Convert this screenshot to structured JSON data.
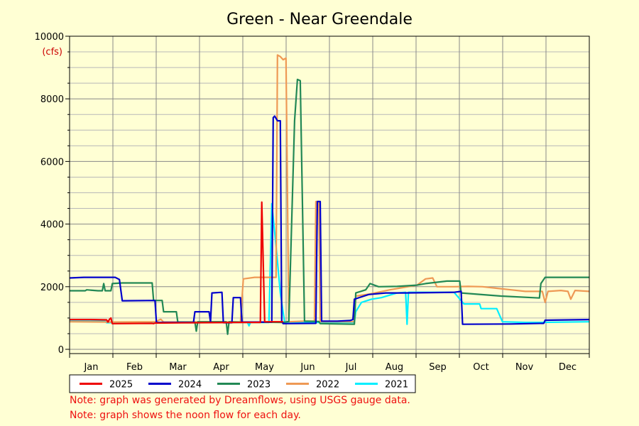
{
  "chart_data": {
    "type": "line",
    "title": "Green - Near Greendale",
    "unit_label": "(cfs)",
    "xlabel": "",
    "ylabel": "",
    "ylim": [
      0,
      10000
    ],
    "y_ticks": [
      0,
      2000,
      4000,
      6000,
      8000,
      10000
    ],
    "x_domain_days": [
      0,
      365
    ],
    "months": [
      "Jan",
      "Feb",
      "Mar",
      "Apr",
      "May",
      "Jun",
      "Jul",
      "Aug",
      "Sep",
      "Oct",
      "Nov",
      "Dec"
    ],
    "grid": true,
    "legend_position": "bottom",
    "series": [
      {
        "name": "2025",
        "color": "#ee0000",
        "points": [
          [
            0,
            950
          ],
          [
            14,
            950
          ],
          [
            26,
            940
          ],
          [
            27,
            870
          ],
          [
            28,
            960
          ],
          [
            29,
            1000
          ],
          [
            30,
            820
          ],
          [
            58,
            830
          ],
          [
            59,
            820
          ],
          [
            60,
            840
          ],
          [
            90,
            850
          ],
          [
            120,
            860
          ],
          [
            134,
            860
          ],
          [
            135,
            4700
          ],
          [
            136,
            2800
          ],
          [
            137,
            880
          ],
          [
            150,
            880
          ]
        ]
      },
      {
        "name": "2024",
        "color": "#0000cc",
        "points": [
          [
            0,
            2280
          ],
          [
            10,
            2300
          ],
          [
            32,
            2300
          ],
          [
            35,
            2230
          ],
          [
            37,
            1550
          ],
          [
            60,
            1560
          ],
          [
            61,
            860
          ],
          [
            87,
            860
          ],
          [
            88,
            1200
          ],
          [
            98,
            1200
          ],
          [
            99,
            870
          ],
          [
            100,
            1800
          ],
          [
            107,
            1820
          ],
          [
            108,
            850
          ],
          [
            114,
            850
          ],
          [
            115,
            1650
          ],
          [
            120,
            1650
          ],
          [
            121,
            870
          ],
          [
            142,
            870
          ],
          [
            143,
            7400
          ],
          [
            144,
            7450
          ],
          [
            146,
            7300
          ],
          [
            148,
            7300
          ],
          [
            149,
            900
          ],
          [
            150,
            820
          ],
          [
            173,
            830
          ],
          [
            174,
            4720
          ],
          [
            176,
            4720
          ],
          [
            177,
            900
          ],
          [
            188,
            900
          ],
          [
            197,
            920
          ],
          [
            199,
            950
          ],
          [
            200,
            1600
          ],
          [
            210,
            1750
          ],
          [
            222,
            1800
          ],
          [
            234,
            1800
          ],
          [
            270,
            1820
          ],
          [
            275,
            1850
          ],
          [
            276,
            800
          ],
          [
            310,
            810
          ],
          [
            333,
            830
          ],
          [
            334,
            930
          ],
          [
            365,
            950
          ]
        ]
      },
      {
        "name": "2023",
        "color": "#228855",
        "points": [
          [
            0,
            1870
          ],
          [
            11,
            1870
          ],
          [
            12,
            1900
          ],
          [
            20,
            1870
          ],
          [
            23,
            1870
          ],
          [
            24,
            2100
          ],
          [
            25,
            1870
          ],
          [
            29,
            1870
          ],
          [
            30,
            2100
          ],
          [
            37,
            2120
          ],
          [
            58,
            2120
          ],
          [
            59,
            1560
          ],
          [
            65,
            1560
          ],
          [
            66,
            1200
          ],
          [
            75,
            1200
          ],
          [
            76,
            870
          ],
          [
            88,
            870
          ],
          [
            89,
            580
          ],
          [
            90,
            880
          ],
          [
            110,
            880
          ],
          [
            111,
            480
          ],
          [
            112,
            880
          ],
          [
            120,
            870
          ],
          [
            150,
            860
          ],
          [
            154,
            890
          ],
          [
            158,
            7300
          ],
          [
            160,
            8620
          ],
          [
            162,
            8580
          ],
          [
            165,
            900
          ],
          [
            175,
            890
          ],
          [
            176,
            820
          ],
          [
            200,
            800
          ],
          [
            201,
            1800
          ],
          [
            208,
            1900
          ],
          [
            211,
            2100
          ],
          [
            217,
            2000
          ],
          [
            230,
            2010
          ],
          [
            244,
            2050
          ],
          [
            250,
            2100
          ],
          [
            265,
            2180
          ],
          [
            274,
            2180
          ],
          [
            275,
            1800
          ],
          [
            303,
            1700
          ],
          [
            330,
            1640
          ],
          [
            331,
            2100
          ],
          [
            334,
            2300
          ],
          [
            365,
            2300
          ]
        ]
      },
      {
        "name": "2022",
        "color": "#ee9955",
        "points": [
          [
            0,
            880
          ],
          [
            30,
            870
          ],
          [
            60,
            880
          ],
          [
            64,
            960
          ],
          [
            66,
            870
          ],
          [
            100,
            870
          ],
          [
            120,
            870
          ],
          [
            122,
            2250
          ],
          [
            130,
            2300
          ],
          [
            145,
            2300
          ],
          [
            146,
            9400
          ],
          [
            148,
            9350
          ],
          [
            150,
            9250
          ],
          [
            152,
            9300
          ],
          [
            154,
            880
          ],
          [
            165,
            900
          ],
          [
            172,
            900
          ],
          [
            173,
            4720
          ],
          [
            175,
            4720
          ],
          [
            176,
            880
          ],
          [
            200,
            880
          ],
          [
            201,
            1700
          ],
          [
            210,
            1760
          ],
          [
            225,
            1900
          ],
          [
            244,
            2050
          ],
          [
            250,
            2250
          ],
          [
            255,
            2280
          ],
          [
            258,
            2000
          ],
          [
            270,
            2000
          ],
          [
            280,
            2010
          ],
          [
            290,
            2000
          ],
          [
            300,
            1950
          ],
          [
            310,
            1900
          ],
          [
            320,
            1850
          ],
          [
            330,
            1850
          ],
          [
            332,
            1850
          ],
          [
            334,
            1500
          ],
          [
            336,
            1850
          ],
          [
            345,
            1880
          ],
          [
            350,
            1850
          ],
          [
            352,
            1600
          ],
          [
            355,
            1880
          ],
          [
            365,
            1850
          ]
        ]
      },
      {
        "name": "2021",
        "color": "#00eeff",
        "points": [
          [
            0,
            900
          ],
          [
            25,
            900
          ],
          [
            26,
            850
          ],
          [
            55,
            860
          ],
          [
            85,
            850
          ],
          [
            110,
            860
          ],
          [
            125,
            860
          ],
          [
            126,
            750
          ],
          [
            127,
            860
          ],
          [
            140,
            860
          ],
          [
            142,
            4650
          ],
          [
            145,
            3300
          ],
          [
            148,
            1800
          ],
          [
            151,
            870
          ],
          [
            170,
            860
          ],
          [
            200,
            860
          ],
          [
            201,
            1200
          ],
          [
            205,
            1500
          ],
          [
            212,
            1600
          ],
          [
            219,
            1650
          ],
          [
            230,
            1800
          ],
          [
            236,
            1820
          ],
          [
            237,
            800
          ],
          [
            238,
            1820
          ],
          [
            250,
            1820
          ],
          [
            270,
            1820
          ],
          [
            277,
            1450
          ],
          [
            288,
            1450
          ],
          [
            289,
            1300
          ],
          [
            300,
            1300
          ],
          [
            304,
            880
          ],
          [
            320,
            860
          ],
          [
            330,
            860
          ],
          [
            365,
            880
          ]
        ]
      }
    ]
  },
  "notes": [
    "Note: graph was generated by Dreamflows, using USGS gauge data.",
    "Note: graph shows the noon flow for each day."
  ]
}
